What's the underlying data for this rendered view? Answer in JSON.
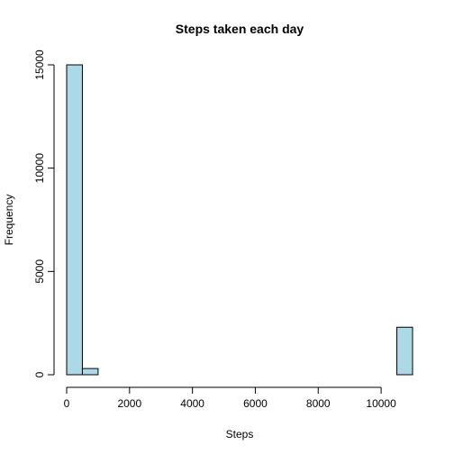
{
  "chart_data": {
    "type": "bar",
    "title": "Steps taken each day",
    "xlabel": "Steps",
    "ylabel": "Frequency",
    "bin_width": 500,
    "bins": [
      {
        "start": 0,
        "end": 500,
        "count": 15000
      },
      {
        "start": 500,
        "end": 1000,
        "count": 300
      },
      {
        "start": 1000,
        "end": 1500,
        "count": 0
      },
      {
        "start": 1500,
        "end": 2000,
        "count": 0
      },
      {
        "start": 2000,
        "end": 2500,
        "count": 0
      },
      {
        "start": 2500,
        "end": 3000,
        "count": 0
      },
      {
        "start": 3000,
        "end": 3500,
        "count": 0
      },
      {
        "start": 3500,
        "end": 4000,
        "count": 0
      },
      {
        "start": 4000,
        "end": 4500,
        "count": 0
      },
      {
        "start": 4500,
        "end": 5000,
        "count": 0
      },
      {
        "start": 5000,
        "end": 5500,
        "count": 0
      },
      {
        "start": 5500,
        "end": 6000,
        "count": 0
      },
      {
        "start": 6000,
        "end": 6500,
        "count": 0
      },
      {
        "start": 6500,
        "end": 7000,
        "count": 0
      },
      {
        "start": 7000,
        "end": 7500,
        "count": 0
      },
      {
        "start": 7500,
        "end": 8000,
        "count": 0
      },
      {
        "start": 8000,
        "end": 8500,
        "count": 0
      },
      {
        "start": 8500,
        "end": 9000,
        "count": 0
      },
      {
        "start": 9000,
        "end": 9500,
        "count": 0
      },
      {
        "start": 9500,
        "end": 10000,
        "count": 0
      },
      {
        "start": 10000,
        "end": 10500,
        "count": 0
      },
      {
        "start": 10500,
        "end": 11000,
        "count": 2300
      }
    ],
    "xlim": [
      0,
      11000
    ],
    "ylim": [
      0,
      15000
    ],
    "x_ticks": [
      0,
      2000,
      4000,
      6000,
      8000,
      10000
    ],
    "y_ticks": [
      0,
      5000,
      10000,
      15000
    ],
    "bar_color": "#add8e6",
    "grid": false,
    "legend": "none"
  }
}
